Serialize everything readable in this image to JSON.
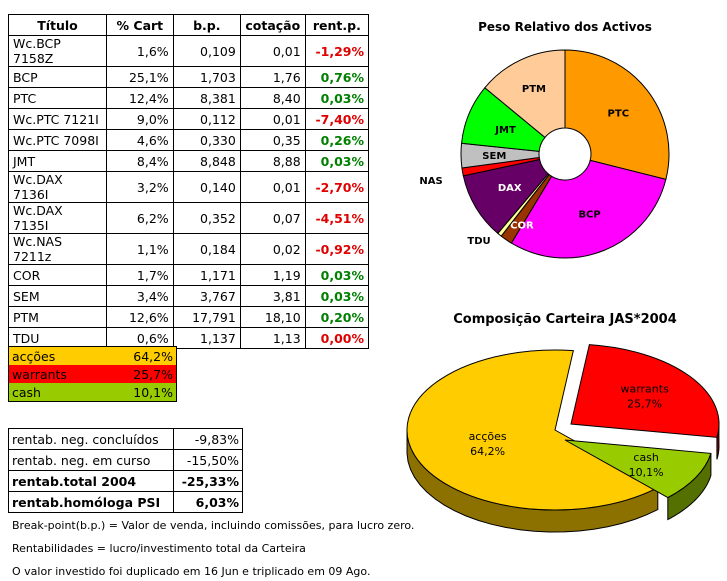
{
  "holdings": {
    "headers": [
      "Título",
      "% Cart",
      "b.p.",
      "cotação",
      "rent.p."
    ],
    "rows": [
      [
        "Wc.BCP 7158Z",
        "1,6%",
        "0,109",
        "0,01",
        "-1,29%"
      ],
      [
        "BCP",
        "25,1%",
        "1,703",
        "1,76",
        "0,76%"
      ],
      [
        "PTC",
        "12,4%",
        "8,381",
        "8,40",
        "0,03%"
      ],
      [
        "Wc.PTC 7121I",
        "9,0%",
        "0,112",
        "0,01",
        "-7,40%"
      ],
      [
        "Wc.PTC 7098I",
        "4,6%",
        "0,330",
        "0,35",
        "0,26%"
      ],
      [
        "JMT",
        "8,4%",
        "8,848",
        "8,88",
        "0,03%"
      ],
      [
        "Wc.DAX 7136I",
        "3,2%",
        "0,140",
        "0,01",
        "-2,70%"
      ],
      [
        "Wc.DAX 7135I",
        "6,2%",
        "0,352",
        "0,07",
        "-4,51%"
      ],
      [
        "Wc.NAS 7211z",
        "1,1%",
        "0,184",
        "0,02",
        "-0,92%"
      ],
      [
        "COR",
        "1,7%",
        "1,171",
        "1,19",
        "0,03%"
      ],
      [
        "SEM",
        "3,4%",
        "3,767",
        "3,81",
        "0,03%"
      ],
      [
        "PTM",
        "12,6%",
        "17,791",
        "18,10",
        "0,20%"
      ],
      [
        "TDU",
        "0,6%",
        "1,137",
        "1,13",
        "0,00%"
      ]
    ]
  },
  "colors": {
    "positive": "#008000",
    "negative": "#e00000",
    "zero": "#e00000"
  },
  "allocation": [
    {
      "label": "acções",
      "value": "64,2%",
      "color": "#ffcc00"
    },
    {
      "label": "warrants",
      "value": "25,7%",
      "color": "#ff0000"
    },
    {
      "label": "cash",
      "value": "10,1%",
      "color": "#99cc00"
    }
  ],
  "stats": [
    {
      "label": "rentab. neg. concluídos",
      "value": "-9,83%",
      "bold": false
    },
    {
      "label": "rentab. neg. em curso",
      "value": "-15,50%",
      "bold": false
    },
    {
      "label": "rentab.total 2004",
      "value": "-25,33%",
      "bold": true
    },
    {
      "label": "rentab.homóloga PSI",
      "value": "6,03%",
      "bold": true
    }
  ],
  "notes": [
    "Break-point(b.p.) = Valor de venda, incluindo comissões, para lucro zero.",
    "Rentabilidades = lucro/investimento total da Carteira",
    "O valor investido foi duplicado em 16 Jun e triplicado em 09 Ago."
  ],
  "chart_data": [
    {
      "type": "pie",
      "title": "Peso Relativo dos Activos",
      "donut": true,
      "slices": [
        {
          "label": "PTC",
          "value": 26.0,
          "color": "#ff9900"
        },
        {
          "label": "BCP",
          "value": 26.7,
          "color": "#ff00ff"
        },
        {
          "label": "COR",
          "value": 1.7,
          "color": "#993300"
        },
        {
          "label": "TDU",
          "value": 0.6,
          "color": "#ffff99"
        },
        {
          "label": "DAX",
          "value": 9.4,
          "color": "#660066"
        },
        {
          "label": "NAS",
          "value": 1.1,
          "color": "#ff0000"
        },
        {
          "label": "SEM",
          "value": 3.4,
          "color": "#c0c0c0"
        },
        {
          "label": "JMT",
          "value": 8.4,
          "color": "#00ff00"
        },
        {
          "label": "PTM",
          "value": 12.6,
          "color": "#ffcc99"
        }
      ]
    },
    {
      "type": "pie",
      "title": "Composição Carteira JAS*2004",
      "three_d": true,
      "slices": [
        {
          "label": "acções",
          "value": 64.2,
          "display": "64,2%",
          "color": "#ffcc00"
        },
        {
          "label": "warrants",
          "value": 25.7,
          "display": "25,7%",
          "color": "#ff0000"
        },
        {
          "label": "cash",
          "value": 10.1,
          "display": "10,1%",
          "color": "#99cc00"
        }
      ]
    }
  ]
}
